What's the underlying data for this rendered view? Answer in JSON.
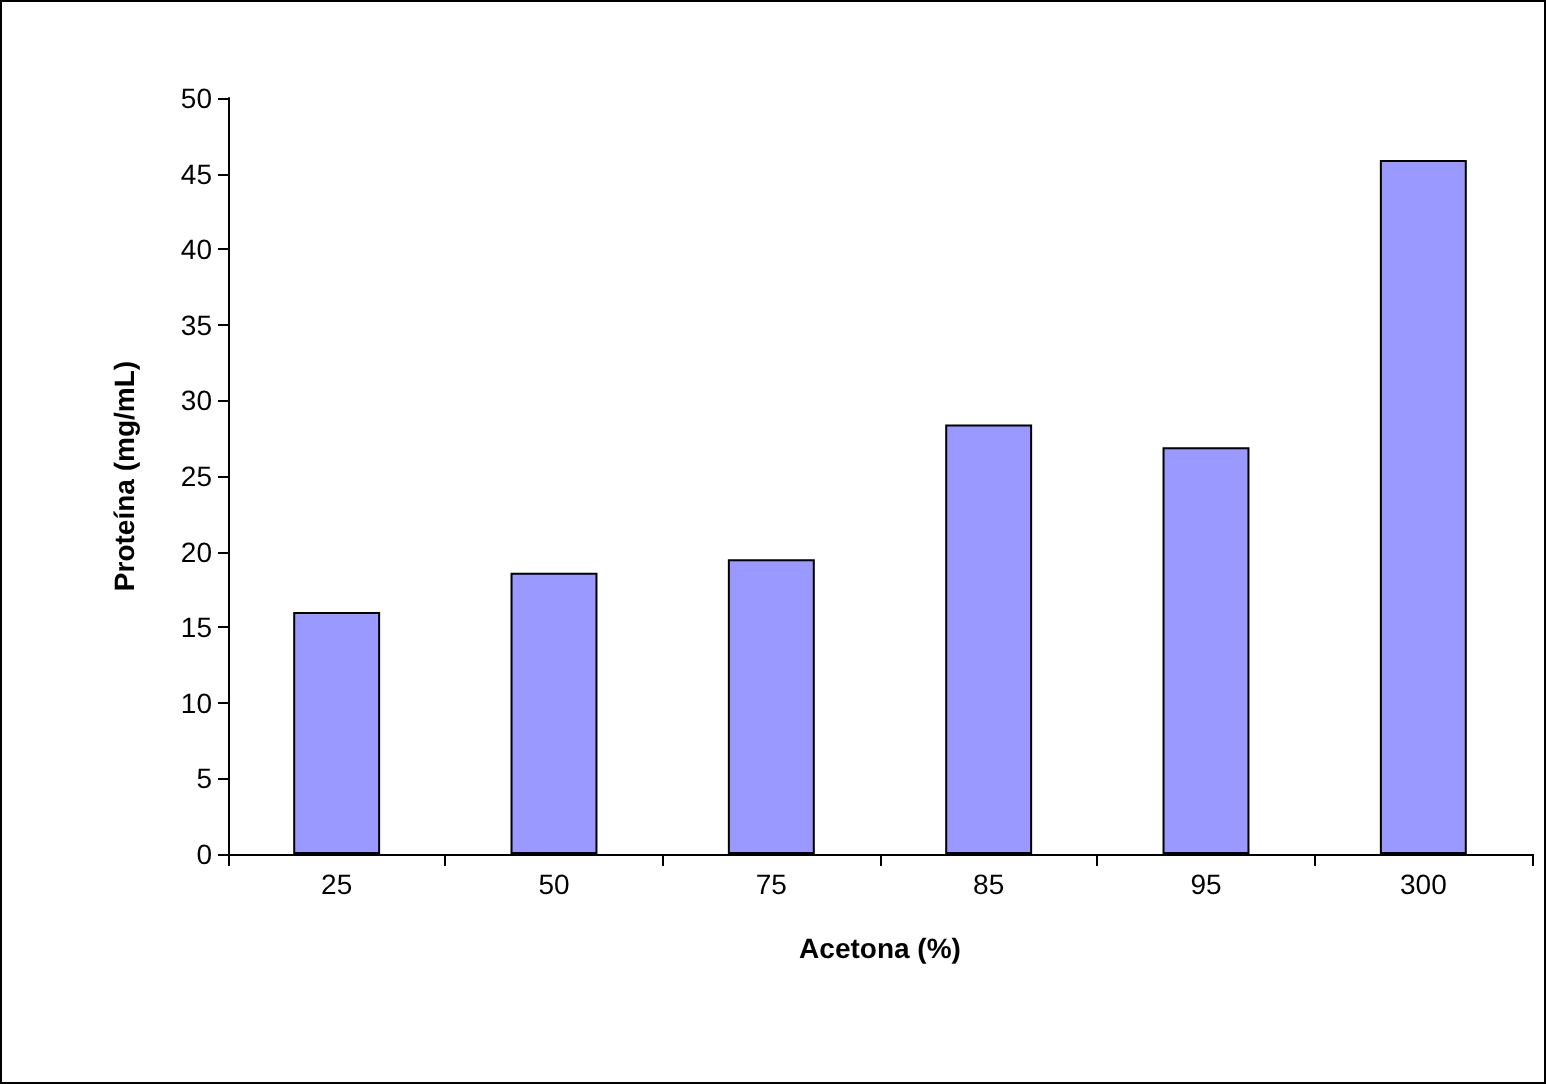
{
  "chart_data": {
    "type": "bar",
    "xlabel": "Acetona (%)",
    "ylabel": "Proteína (mg/mL)",
    "categories": [
      "25",
      "50",
      "75",
      "85",
      "95",
      "300"
    ],
    "values": [
      16,
      18.6,
      19.5,
      28.4,
      26.9,
      45.9
    ],
    "color": "#9999ff",
    "ylim": [
      0,
      50
    ],
    "yticks": [
      0,
      5,
      10,
      15,
      20,
      25,
      30,
      35,
      40,
      45,
      50
    ],
    "grid": false
  }
}
